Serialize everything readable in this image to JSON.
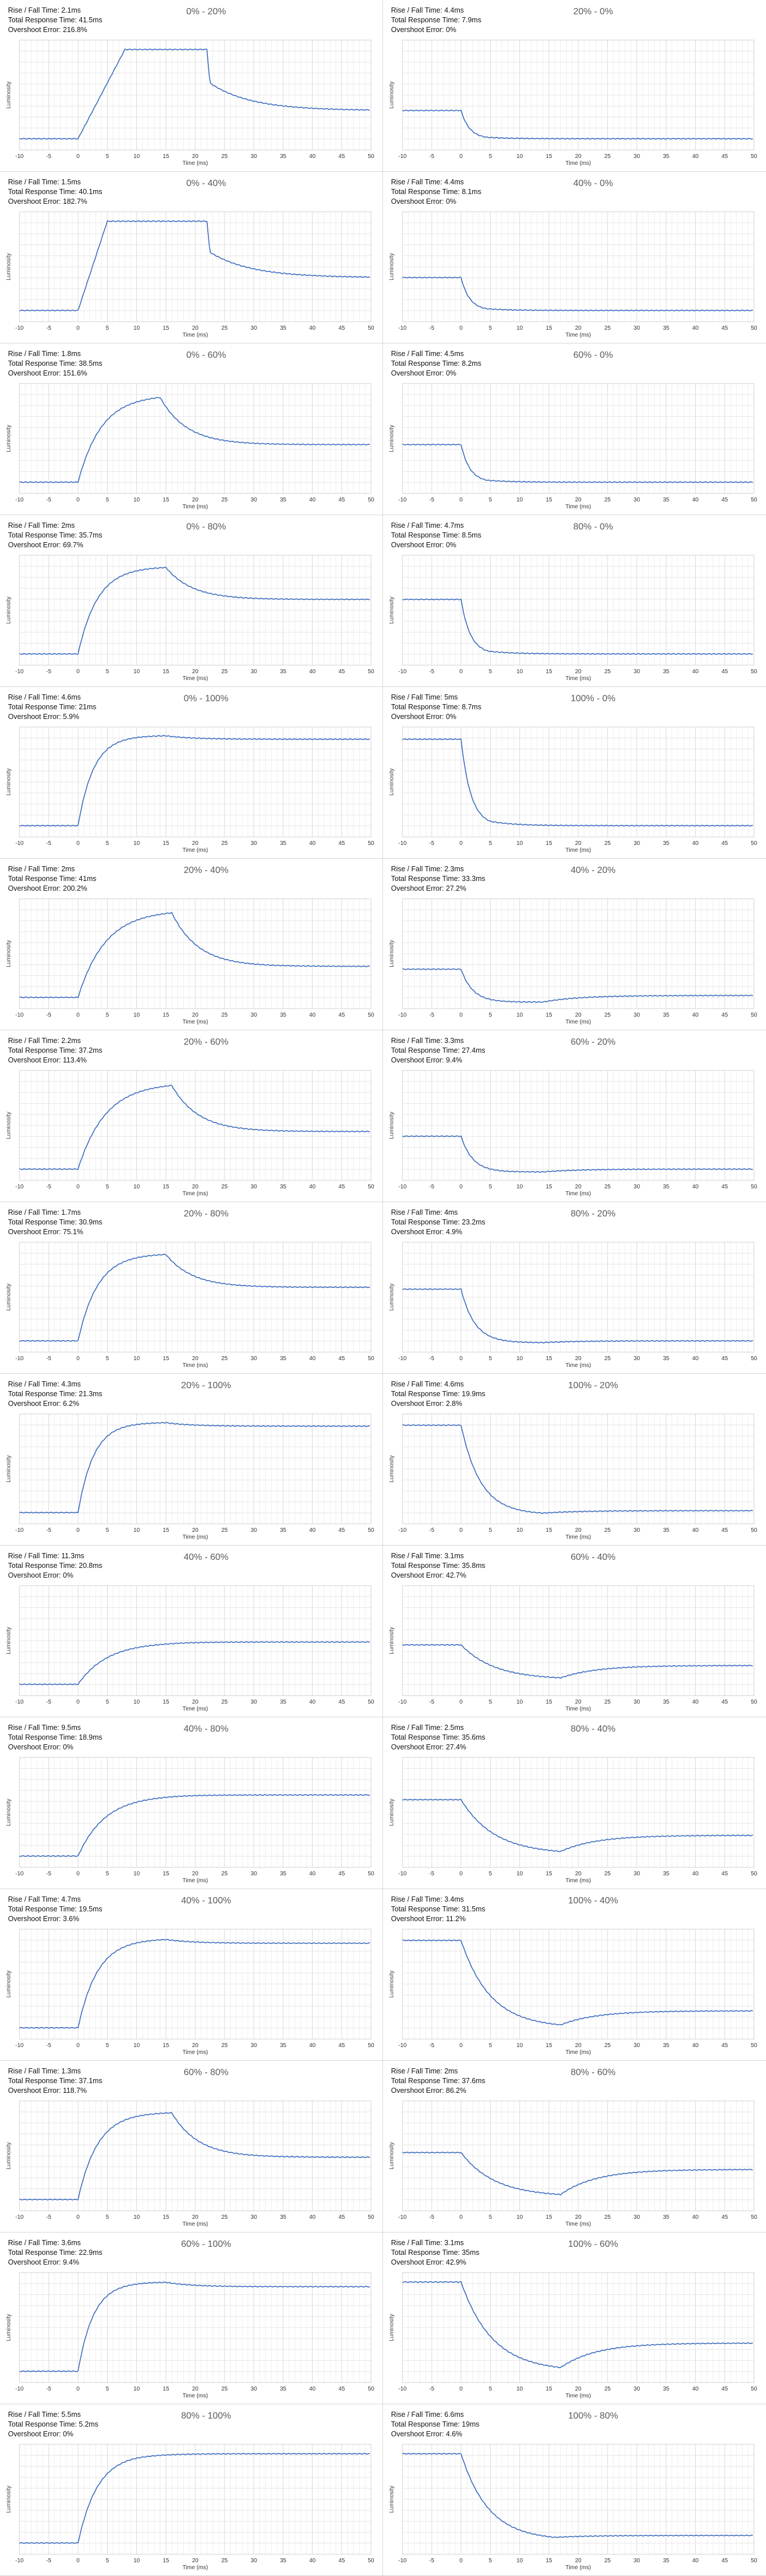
{
  "axis": {
    "x_label": "Time (ms)",
    "y_label": "Luminosity",
    "x_ticks": [
      -10,
      -5,
      0,
      5,
      10,
      15,
      20,
      25,
      30,
      35,
      40,
      45,
      50
    ],
    "xlim": [
      -10,
      50
    ]
  },
  "labels": {
    "rise": "Rise / Fall Time: ",
    "total": "Total Response Time: ",
    "overshoot": "Overshoot Error: "
  },
  "chart_data": [
    {
      "type": "line",
      "title": "0% - 20%",
      "rise": "2.1ms",
      "total": "41.5ms",
      "overshoot": "216.8%",
      "start": 0.0,
      "peak": 0.95,
      "final": 0.3,
      "t_start": 0,
      "t_peak": 8,
      "t_hold": 22,
      "drop": "step"
    },
    {
      "type": "line",
      "title": "20% - 0%",
      "rise": "4.4ms",
      "total": "7.9ms",
      "overshoot": "0%",
      "start": 0.3,
      "peak": 0.0,
      "final": 0.0,
      "t_start": 0,
      "t_peak": 4.4,
      "t_hold": 4.4,
      "drop": "none"
    },
    {
      "type": "line",
      "title": "0% - 40%",
      "rise": "1.5ms",
      "total": "40.1ms",
      "overshoot": "182.7%",
      "start": 0.0,
      "peak": 0.95,
      "final": 0.35,
      "t_start": 0,
      "t_peak": 5,
      "t_hold": 22,
      "drop": "step"
    },
    {
      "type": "line",
      "title": "40% - 0%",
      "rise": "4.4ms",
      "total": "8.1ms",
      "overshoot": "0%",
      "start": 0.35,
      "peak": 0.0,
      "final": 0.0,
      "t_start": 0,
      "t_peak": 4.4,
      "t_hold": 4.4,
      "drop": "none"
    },
    {
      "type": "line",
      "title": "0% - 60%",
      "rise": "1.8ms",
      "total": "38.5ms",
      "overshoot": "151.6%",
      "start": 0.0,
      "peak": 0.93,
      "final": 0.4,
      "t_start": 0,
      "t_peak": 12,
      "t_hold": 14,
      "drop": "smooth"
    },
    {
      "type": "line",
      "title": "60% - 0%",
      "rise": "4.5ms",
      "total": "8.2ms",
      "overshoot": "0%",
      "start": 0.4,
      "peak": 0.0,
      "final": 0.0,
      "t_start": 0,
      "t_peak": 4.5,
      "t_hold": 4.5,
      "drop": "none"
    },
    {
      "type": "line",
      "title": "0% - 80%",
      "rise": "2ms",
      "total": "35.7ms",
      "overshoot": "69.7%",
      "start": 0.0,
      "peak": 0.93,
      "final": 0.58,
      "t_start": 0,
      "t_peak": 10,
      "t_hold": 15,
      "drop": "smooth"
    },
    {
      "type": "line",
      "title": "80% - 0%",
      "rise": "4.7ms",
      "total": "8.5ms",
      "overshoot": "0%",
      "start": 0.58,
      "peak": 0.0,
      "final": 0.0,
      "t_start": 0,
      "t_peak": 4.7,
      "t_hold": 4.7,
      "drop": "none"
    },
    {
      "type": "line",
      "title": "0% - 100%",
      "rise": "4.6ms",
      "total": "21ms",
      "overshoot": "5.9%",
      "start": 0.0,
      "peak": 0.96,
      "final": 0.92,
      "t_start": 0,
      "t_peak": 8,
      "t_hold": 15,
      "drop": "smooth"
    },
    {
      "type": "line",
      "title": "100% - 0%",
      "rise": "5ms",
      "total": "8.7ms",
      "overshoot": "0%",
      "start": 0.92,
      "peak": 0.0,
      "final": 0.0,
      "t_start": 0,
      "t_peak": 5,
      "t_hold": 5,
      "drop": "none"
    },
    {
      "type": "line",
      "title": "20% - 40%",
      "rise": "2ms",
      "total": "41ms",
      "overshoot": "200.2%",
      "start": 0.0,
      "peak": 0.93,
      "final": 0.33,
      "t_start": 0,
      "t_peak": 14,
      "t_hold": 16,
      "drop": "smooth"
    },
    {
      "type": "line",
      "title": "40% - 20%",
      "rise": "2.3ms",
      "total": "33.3ms",
      "overshoot": "27.2%",
      "start": 0.3,
      "peak": -0.05,
      "final": 0.02,
      "t_start": 0,
      "t_peak": 6,
      "t_hold": 14,
      "drop": "recover"
    },
    {
      "type": "line",
      "title": "20% - 60%",
      "rise": "2.2ms",
      "total": "37.2ms",
      "overshoot": "113.4%",
      "start": 0.0,
      "peak": 0.92,
      "final": 0.4,
      "t_start": 0,
      "t_peak": 14,
      "t_hold": 16,
      "drop": "smooth"
    },
    {
      "type": "line",
      "title": "60% - 20%",
      "rise": "3.3ms",
      "total": "27.4ms",
      "overshoot": "9.4%",
      "start": 0.35,
      "peak": -0.03,
      "final": 0.0,
      "t_start": 0,
      "t_peak": 6,
      "t_hold": 14,
      "drop": "recover"
    },
    {
      "type": "line",
      "title": "20% - 80%",
      "rise": "1.7ms",
      "total": "30.9ms",
      "overshoot": "75.1%",
      "start": 0.0,
      "peak": 0.93,
      "final": 0.57,
      "t_start": 0,
      "t_peak": 10,
      "t_hold": 15,
      "drop": "smooth"
    },
    {
      "type": "line",
      "title": "80% - 20%",
      "rise": "4ms",
      "total": "23.2ms",
      "overshoot": "4.9%",
      "start": 0.55,
      "peak": -0.02,
      "final": 0.0,
      "t_start": 0,
      "t_peak": 7,
      "t_hold": 14,
      "drop": "recover"
    },
    {
      "type": "line",
      "title": "20% - 100%",
      "rise": "4.3ms",
      "total": "21.3ms",
      "overshoot": "6.2%",
      "start": 0.0,
      "peak": 0.96,
      "final": 0.92,
      "t_start": 0,
      "t_peak": 8,
      "t_hold": 15,
      "drop": "smooth"
    },
    {
      "type": "line",
      "title": "100% - 20%",
      "rise": "4.6ms",
      "total": "19.9ms",
      "overshoot": "2.8%",
      "start": 0.93,
      "peak": -0.02,
      "final": 0.02,
      "t_start": 0,
      "t_peak": 10,
      "t_hold": 14,
      "drop": "recover"
    },
    {
      "type": "line",
      "title": "40% - 60%",
      "rise": "11.3ms",
      "total": "20.8ms",
      "overshoot": "0%",
      "start": 0.0,
      "peak": 0.45,
      "final": 0.45,
      "t_start": 0,
      "t_peak": 15,
      "t_hold": 15,
      "drop": "none"
    },
    {
      "type": "line",
      "title": "60% - 40%",
      "rise": "3.1ms",
      "total": "35.8ms",
      "overshoot": "42.7%",
      "start": 0.42,
      "peak": 0.05,
      "final": 0.2,
      "t_start": 0,
      "t_peak": 17,
      "t_hold": 17,
      "drop": "recover"
    },
    {
      "type": "line",
      "title": "40% - 80%",
      "rise": "9.5ms",
      "total": "18.9ms",
      "overshoot": "0%",
      "start": 0.0,
      "peak": 0.65,
      "final": 0.65,
      "t_start": 0,
      "t_peak": 14,
      "t_hold": 14,
      "drop": "none"
    },
    {
      "type": "line",
      "title": "80% - 40%",
      "rise": "2.5ms",
      "total": "35.6ms",
      "overshoot": "27.4%",
      "start": 0.6,
      "peak": 0.02,
      "final": 0.22,
      "t_start": 0,
      "t_peak": 17,
      "t_hold": 17,
      "drop": "recover"
    },
    {
      "type": "line",
      "title": "40% - 100%",
      "rise": "4.7ms",
      "total": "19.5ms",
      "overshoot": "3.6%",
      "start": 0.0,
      "peak": 0.95,
      "final": 0.9,
      "t_start": 0,
      "t_peak": 10,
      "t_hold": 15,
      "drop": "smooth"
    },
    {
      "type": "line",
      "title": "100% - 40%",
      "rise": "3.4ms",
      "total": "31.5ms",
      "overshoot": "11.2%",
      "start": 0.93,
      "peak": 0.0,
      "final": 0.18,
      "t_start": 0,
      "t_peak": 15,
      "t_hold": 17,
      "drop": "recover"
    },
    {
      "type": "line",
      "title": "60% - 80%",
      "rise": "1.3ms",
      "total": "37.1ms",
      "overshoot": "118.7%",
      "start": 0.0,
      "peak": 0.93,
      "final": 0.45,
      "t_start": 0,
      "t_peak": 10,
      "t_hold": 16,
      "drop": "smooth"
    },
    {
      "type": "line",
      "title": "80% - 60%",
      "rise": "2ms",
      "total": "37.6ms",
      "overshoot": "86.2%",
      "start": 0.5,
      "peak": 0.03,
      "final": 0.32,
      "t_start": 0,
      "t_peak": 17,
      "t_hold": 17,
      "drop": "recover"
    },
    {
      "type": "line",
      "title": "60% - 100%",
      "rise": "3.6ms",
      "total": "22.9ms",
      "overshoot": "9.4%",
      "start": 0.0,
      "peak": 0.95,
      "final": 0.9,
      "t_start": 0,
      "t_peak": 8,
      "t_hold": 15,
      "drop": "smooth"
    },
    {
      "type": "line",
      "title": "100% - 60%",
      "rise": "3.1ms",
      "total": "35ms",
      "overshoot": "42.9%",
      "start": 0.95,
      "peak": 0.0,
      "final": 0.3,
      "t_start": 0,
      "t_peak": 16,
      "t_hold": 17,
      "drop": "recover"
    },
    {
      "type": "line",
      "title": "80% - 100%",
      "rise": "5.5ms",
      "total": "5.2ms",
      "overshoot": "0%",
      "start": 0.0,
      "peak": 0.95,
      "final": 0.95,
      "t_start": 0,
      "t_peak": 10,
      "t_hold": 10,
      "drop": "none"
    },
    {
      "type": "line",
      "title": "100% - 80%",
      "rise": "6.6ms",
      "total": "19ms",
      "overshoot": "4.6%",
      "start": 0.95,
      "peak": 0.03,
      "final": 0.08,
      "t_start": 0,
      "t_peak": 14,
      "t_hold": 16,
      "drop": "recover"
    }
  ]
}
